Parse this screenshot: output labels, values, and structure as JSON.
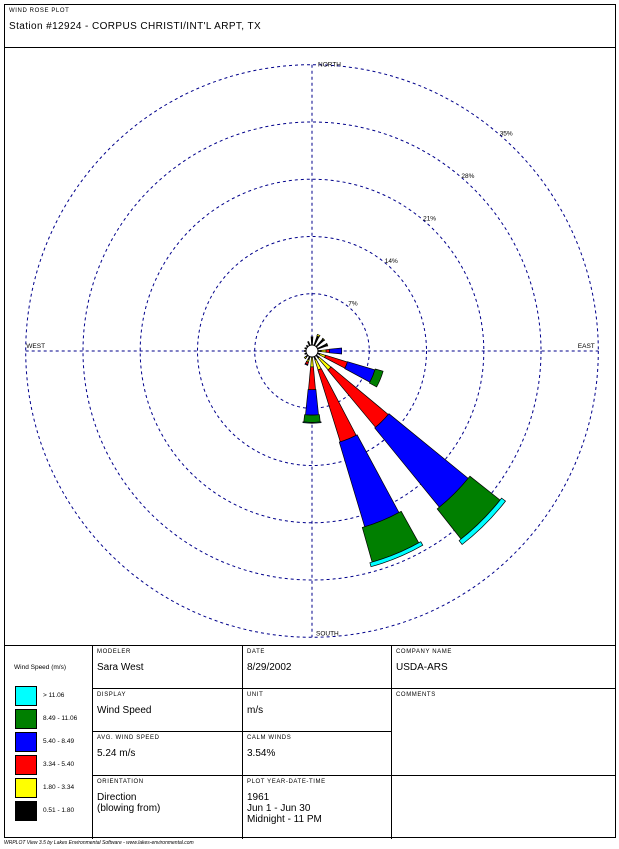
{
  "header": {
    "title": "WIND ROSE PLOT",
    "station": "Station #12924 - CORPUS CHRISTI/INT'L ARPT, TX"
  },
  "chart_data": {
    "type": "windrose",
    "directions": [
      "N",
      "NNE",
      "NE",
      "ENE",
      "E",
      "ESE",
      "SE",
      "SSE",
      "S",
      "SSW",
      "SW",
      "WSW",
      "W",
      "WNW",
      "NW",
      "NNW"
    ],
    "speed_bins": [
      {
        "range": "0.51 - 1.80",
        "color": "#000000"
      },
      {
        "range": "1.80 - 3.34",
        "color": "#ffff00"
      },
      {
        "range": "3.34 - 5.40",
        "color": "#ff0000"
      },
      {
        "range": "5.40 - 8.49",
        "color": "#0000ff"
      },
      {
        "range": "8.49 - 11.06",
        "color": "#007f00"
      },
      {
        "range": "> 11.06",
        "color": "#00ffff"
      }
    ],
    "frequencies": [
      [
        1.0,
        0.0,
        0.0,
        0.0,
        0.0,
        0.0
      ],
      [
        1.2,
        0.2,
        0.0,
        0.0,
        0.0,
        0.0
      ],
      [
        1.2,
        0.1,
        0.0,
        0.0,
        0.0,
        0.0
      ],
      [
        1.2,
        0.1,
        0.0,
        0.0,
        0.0,
        0.0
      ],
      [
        0.4,
        0.6,
        0.4,
        1.5,
        0.0,
        0.0
      ],
      [
        0.3,
        0.7,
        2.8,
        3.5,
        1.0,
        0.0
      ],
      [
        0.4,
        1.9,
        9.1,
        12.5,
        4.7,
        0.6
      ],
      [
        0.4,
        1.3,
        9.2,
        10.8,
        4.4,
        0.5
      ],
      [
        0.0,
        1.2,
        2.8,
        3.1,
        0.9,
        0.1
      ],
      [
        0.4,
        0.3,
        0.3,
        0.1,
        0.0,
        0.0
      ],
      [
        0.3,
        0.2,
        0.0,
        0.0,
        0.0,
        0.0
      ],
      [
        0.2,
        0.0,
        0.0,
        0.0,
        0.0,
        0.0
      ],
      [
        0.2,
        0.0,
        0.0,
        0.0,
        0.0,
        0.0
      ],
      [
        0.2,
        0.0,
        0.0,
        0.0,
        0.0,
        0.0
      ],
      [
        0.2,
        0.0,
        0.0,
        0.0,
        0.0,
        0.0
      ],
      [
        0.5,
        0.0,
        0.0,
        0.0,
        0.0,
        0.0
      ]
    ],
    "rings": [
      7,
      14,
      21,
      28,
      35
    ],
    "ring_labels": [
      "7%",
      "14%",
      "21%",
      "28%",
      "35%"
    ],
    "compass_labels": {
      "north": "NORTH",
      "south": "SOUTH",
      "east": "EAST",
      "west": "WEST"
    },
    "calm_percent": 3.54
  },
  "legend": {
    "title": "Wind Speed (m/s)",
    "items": [
      {
        "label": "> 11.06",
        "color": "#00ffff"
      },
      {
        "label": "8.49 - 11.06",
        "color": "#007f00"
      },
      {
        "label": "5.40 - 8.49",
        "color": "#0000ff"
      },
      {
        "label": "3.34 - 5.40",
        "color": "#ff0000"
      },
      {
        "label": "1.80 - 3.34",
        "color": "#ffff00"
      },
      {
        "label": "0.51 - 1.80",
        "color": "#000000"
      }
    ]
  },
  "info": {
    "modeler_label": "MODELER",
    "modeler": "Sara West",
    "date_label": "DATE",
    "date": "8/29/2002",
    "company_label": "COMPANY NAME",
    "company": "USDA-ARS",
    "display_label": "DISPLAY",
    "display": "Wind Speed",
    "unit_label": "UNIT",
    "unit": "m/s",
    "comments_label": "COMMENTS",
    "avg_label": "AVG. WIND SPEED",
    "avg": "5.24 m/s",
    "calm_label": "CALM WINDS",
    "calm": "3.54%",
    "orientation_label": "ORIENTATION",
    "orientation_1": "Direction",
    "orientation_2": "(blowing from)",
    "plot_label": "PLOT YEAR-DATE-TIME",
    "plot_1": "1961",
    "plot_2": "Jun 1 - Jun 30",
    "plot_3": "Midnight -  11 PM"
  },
  "footer": "WRPLOT View 3.5 by Lakes Environmental Software - www.lakes-environmental.com"
}
